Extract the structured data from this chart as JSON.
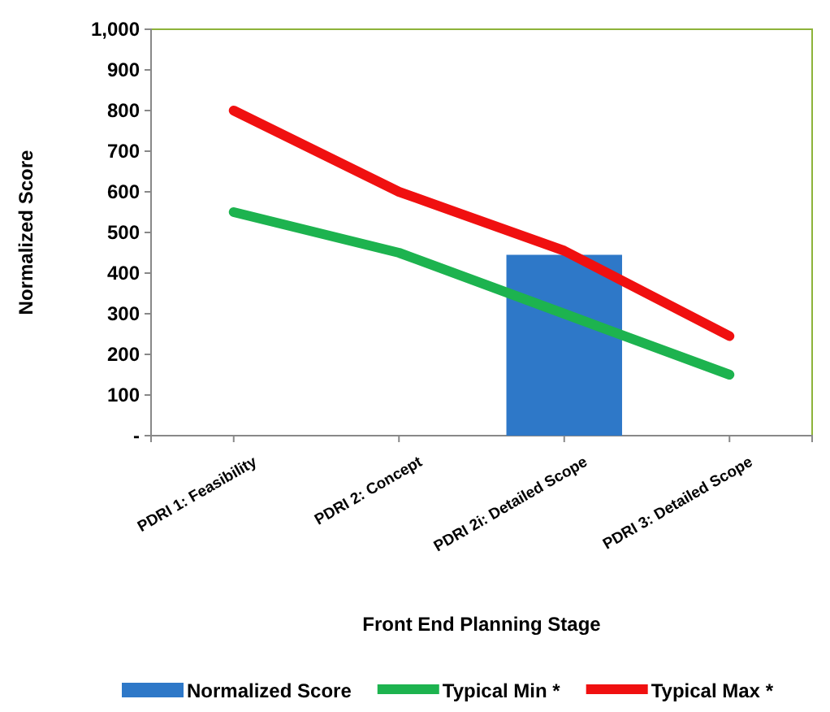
{
  "chart_data": {
    "type": "bar",
    "xlabel": "Front End Planning Stage",
    "ylabel": "Normalized Score",
    "categories": [
      "PDRI 1: Feasibility",
      "PDRI 2: Concept",
      "PDRI 2i: Detailed Scope",
      "PDRI 3: Detailed Scope"
    ],
    "series": [
      {
        "name": "Normalized Score",
        "color": "#2e78c8",
        "values": [
          null,
          null,
          445,
          null
        ]
      },
      {
        "name": "Typical Min *",
        "type": "line",
        "color": "#1db34f",
        "values": [
          550,
          450,
          300,
          150
        ]
      },
      {
        "name": "Typical Max *",
        "type": "line",
        "color": "#f01010",
        "values": [
          800,
          600,
          455,
          245
        ]
      }
    ],
    "ylim": [
      0,
      1000
    ],
    "yticks": [
      {
        "value": 0,
        "label": "-"
      },
      100,
      200,
      300,
      400,
      500,
      600,
      700,
      800,
      900,
      {
        "value": 1000,
        "label": "1,000"
      }
    ],
    "grid": false,
    "legend": "bottom",
    "marker": "none"
  }
}
